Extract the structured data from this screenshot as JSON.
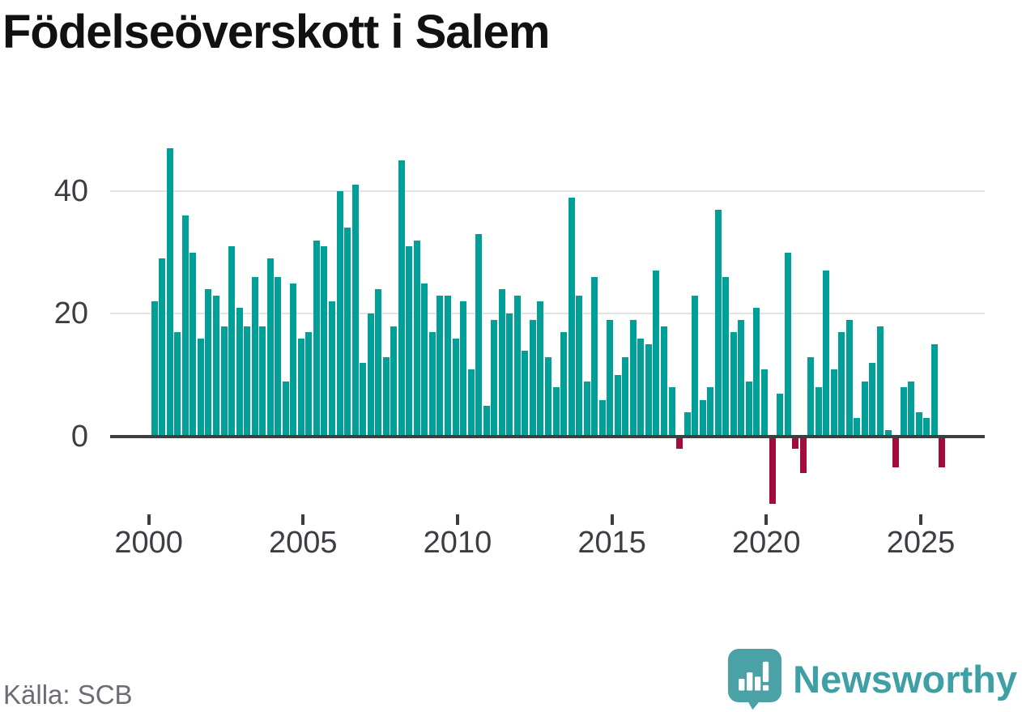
{
  "title": "Födelseöverskott i Salem",
  "source": "Källa: SCB",
  "branding": {
    "name": "Newsworthy"
  },
  "colors": {
    "positive": "#00a099",
    "negative": "#a30a3e",
    "brand_text": "#3e9fa4",
    "brand_bubble": "#4aa2a7",
    "grid": "#e3e3e3",
    "axis": "#3f3f3f",
    "title_text": "#111111",
    "tick_text": "#3d3d44",
    "muted_text": "#6c6c75"
  },
  "chart_data": {
    "type": "bar",
    "title": "Födelseöverskott i Salem",
    "xlabel": "",
    "ylabel": "",
    "x_unit": "quarter",
    "start_period": "2000-Q1",
    "end_period": "2025-Q3",
    "x_tick_labels": [
      "2000",
      "2005",
      "2010",
      "2015",
      "2020",
      "2025"
    ],
    "y_ticks": [
      0,
      20,
      40
    ],
    "ylim": [
      -13,
      50
    ],
    "grid": "horizontal",
    "legend": "none",
    "series": [
      {
        "name": "Födelseöverskott",
        "values": [
          22,
          29,
          47,
          17,
          36,
          30,
          16,
          24,
          23,
          18,
          31,
          21,
          18,
          26,
          18,
          29,
          26,
          9,
          25,
          16,
          17,
          32,
          31,
          22,
          40,
          34,
          41,
          12,
          20,
          24,
          13,
          18,
          45,
          31,
          32,
          25,
          17,
          23,
          23,
          16,
          22,
          11,
          33,
          5,
          19,
          24,
          20,
          23,
          14,
          19,
          22,
          13,
          8,
          17,
          39,
          23,
          9,
          26,
          6,
          19,
          10,
          13,
          19,
          16,
          15,
          27,
          18,
          8,
          -2,
          4,
          23,
          6,
          8,
          37,
          26,
          17,
          19,
          9,
          21,
          11,
          -11,
          7,
          30,
          -2,
          -6,
          13,
          8,
          27,
          11,
          17,
          19,
          3,
          9,
          12,
          18,
          1,
          -5,
          8,
          9,
          4,
          3,
          15,
          -5
        ]
      }
    ]
  }
}
